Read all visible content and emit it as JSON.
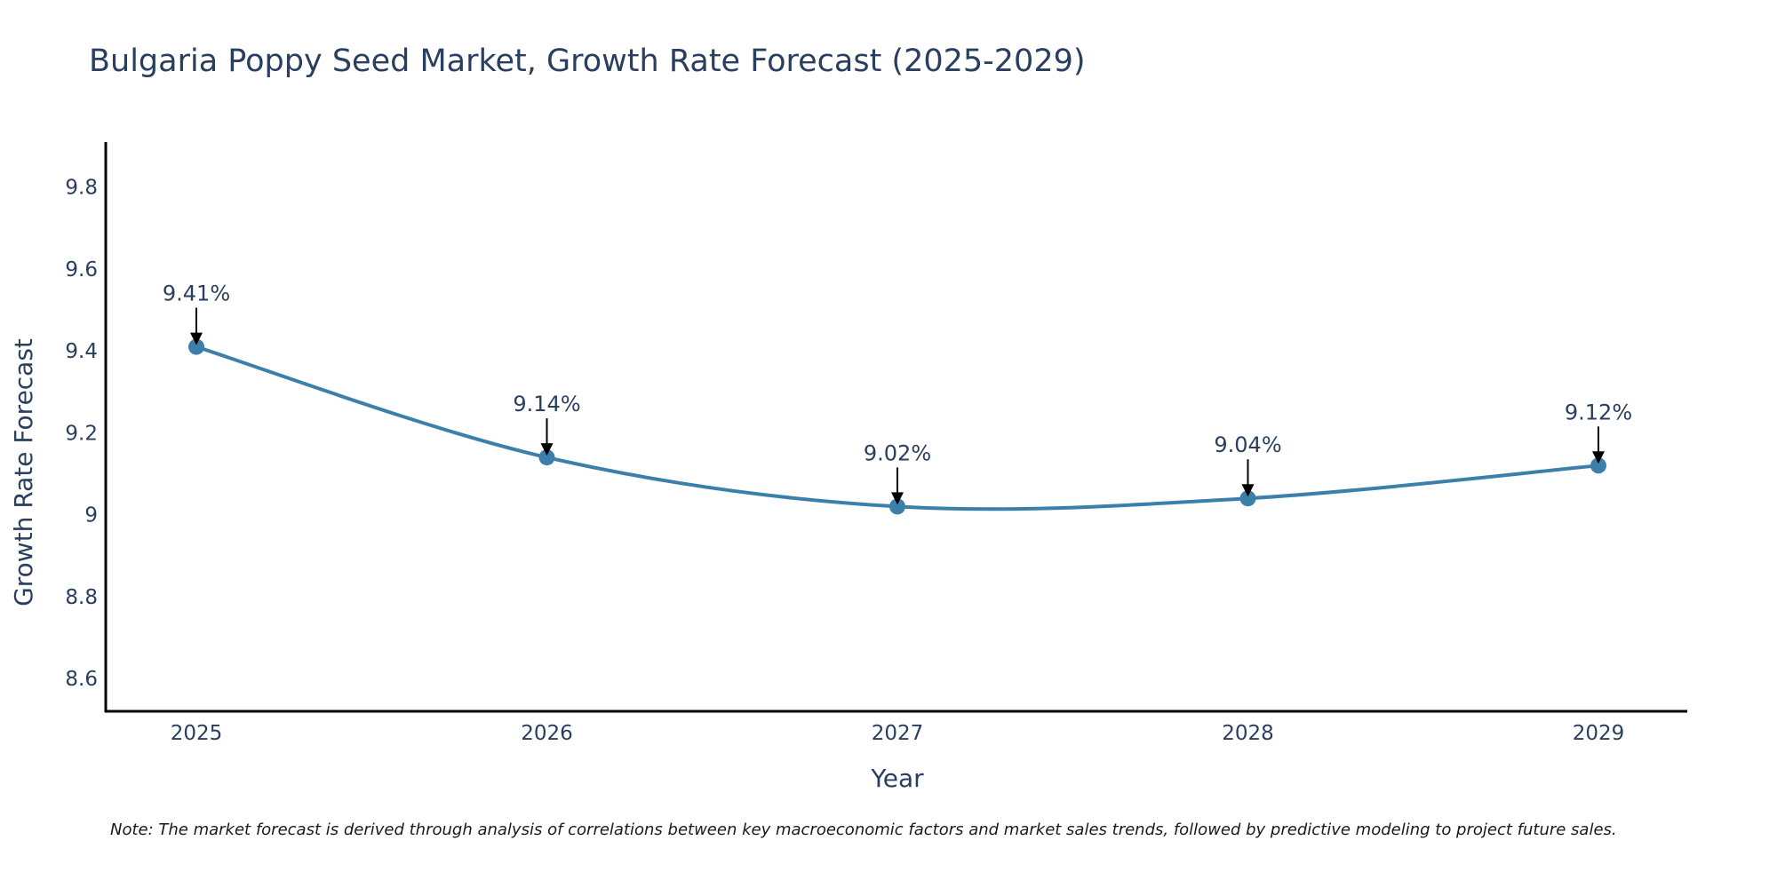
{
  "chart_data": {
    "type": "line",
    "title": "Bulgaria Poppy Seed Market, Growth Rate Forecast (2025-2029)",
    "xlabel": "Year",
    "ylabel": "Growth Rate Forecast",
    "categories": [
      "2025",
      "2026",
      "2027",
      "2028",
      "2029"
    ],
    "series": [
      {
        "name": "Growth Rate Forecast",
        "values": [
          9.41,
          9.14,
          9.02,
          9.04,
          9.12
        ],
        "color": "#3d7fab"
      }
    ],
    "data_labels": [
      "9.41%",
      "9.14%",
      "9.02%",
      "9.04%",
      "9.12%"
    ],
    "yticks": [
      8.6,
      8.8,
      9,
      9.2,
      9.4,
      9.6,
      9.8
    ],
    "ytick_labels": [
      "8.6",
      "8.8",
      "9",
      "9.2",
      "9.4",
      "9.6",
      "9.8"
    ],
    "ylim": [
      8.52,
      9.91
    ],
    "grid": false,
    "legend": false,
    "note": "Note: The market forecast is derived through analysis of correlations between key macroeconomic factors and market sales trends, followed by predictive modeling to project future sales."
  }
}
